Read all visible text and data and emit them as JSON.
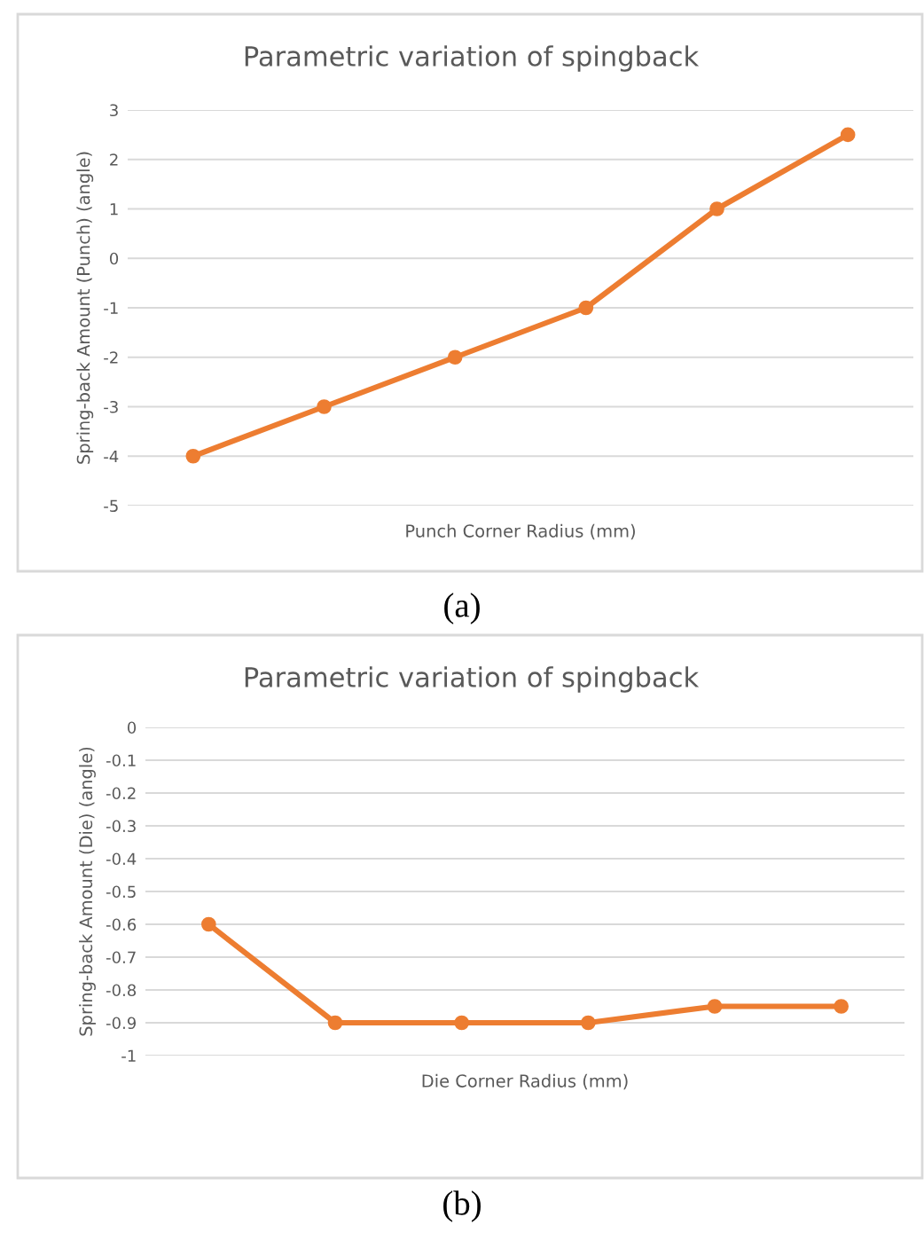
{
  "chart_data": [
    {
      "type": "line",
      "title": "Parametric variation of spingback",
      "xlabel": "Punch Corner Radius (mm)",
      "ylabel": "Spring-back Amount (Punch) (angle)",
      "categories": [
        null,
        null,
        null,
        null,
        null,
        null
      ],
      "series": [
        {
          "color": "#ed7d31",
          "values": [
            -4,
            -3,
            -2,
            -1,
            1,
            2.5
          ]
        }
      ],
      "ylim": [
        -5,
        3
      ],
      "yticks": [
        -5,
        -4,
        -3,
        -2,
        -1,
        0,
        1,
        2,
        3
      ],
      "grid": "y",
      "marker": "circle",
      "line_style": "solid",
      "annotations": [
        "(a)"
      ]
    },
    {
      "type": "line",
      "title": "Parametric variation of spingback",
      "xlabel": "Die Corner Radius (mm)",
      "ylabel": "Spring-back Amount (Die) (angle)",
      "categories": [
        null,
        null,
        null,
        null,
        null,
        null
      ],
      "series": [
        {
          "color": "#ed7d31",
          "values": [
            -0.6,
            -0.9,
            -0.9,
            -0.9,
            -0.85,
            -0.85
          ]
        }
      ],
      "ylim": [
        -1,
        0
      ],
      "yticks": [
        -1,
        -0.9,
        -0.8,
        -0.7,
        -0.6,
        -0.5,
        -0.4,
        -0.3,
        -0.2,
        -0.1,
        0
      ],
      "grid": "y",
      "marker": "circle",
      "line_style": "solid",
      "annotations": [
        "(b)"
      ]
    }
  ]
}
